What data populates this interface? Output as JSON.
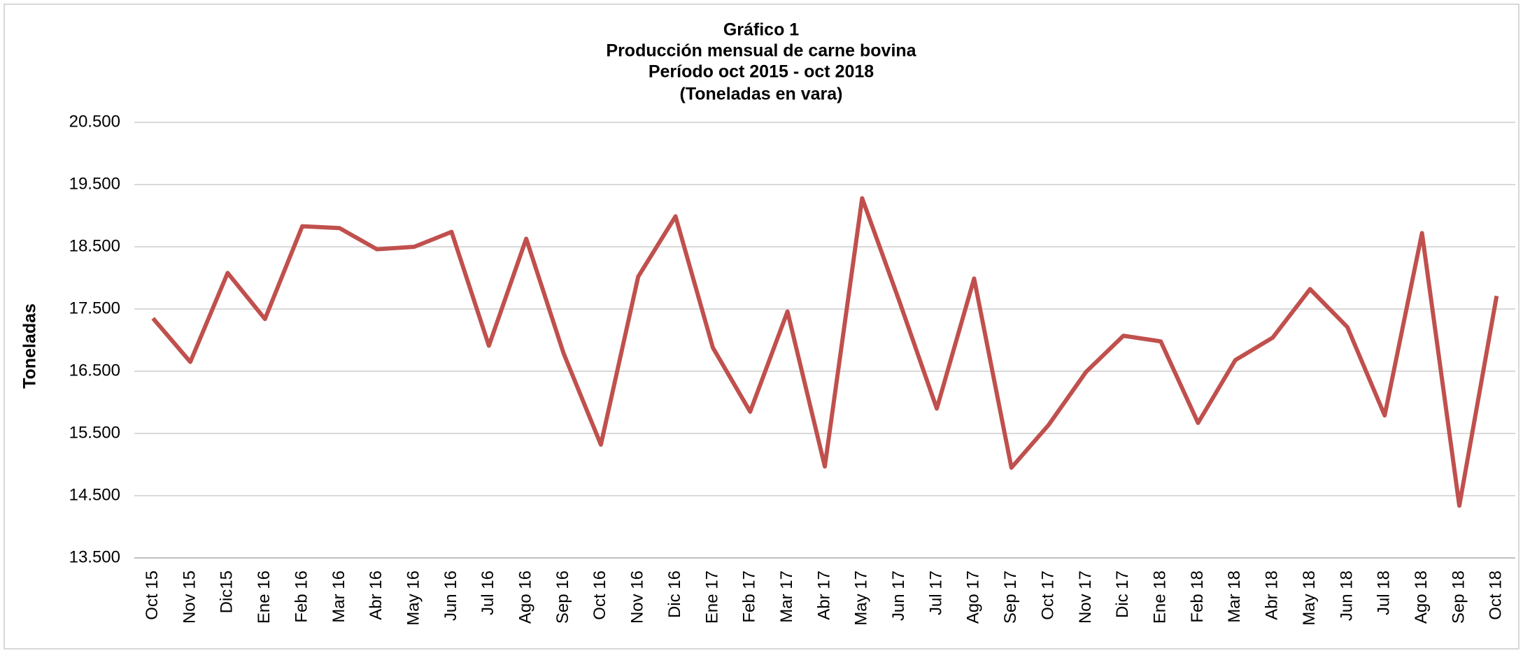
{
  "chart_data": {
    "type": "line",
    "title": [
      "Gráfico 1",
      "Producción mensual de carne bovina",
      "Período oct 2015 -  oct 2018",
      "(Toneladas en vara)"
    ],
    "ylabel": "Toneladas",
    "categories": [
      "Oct 15",
      "Nov 15",
      "Dic15",
      "Ene 16",
      "Feb 16",
      "Mar 16",
      "Abr 16",
      "May 16",
      "Jun 16",
      "Jul 16",
      "Ago 16",
      "Sep 16",
      "Oct 16",
      "Nov 16",
      "Dic 16",
      "Ene 17",
      "Feb 17",
      "Mar 17",
      "Abr 17",
      "May 17",
      "Jun 17",
      "Jul 17",
      "Ago 17",
      "Sep 17",
      "Oct 17",
      "Nov 17",
      "Dic 17",
      "Ene 18",
      "Feb 18",
      "Mar 18",
      "Abr 18",
      "May 18",
      "Jun 18",
      "Jul 18",
      "Ago 18",
      "Sep 18",
      "Oct 18"
    ],
    "series": [
      {
        "name": "Toneladas",
        "color": "#c0504d",
        "values": [
          17350,
          16650,
          18080,
          17340,
          18830,
          18800,
          18460,
          18500,
          18740,
          16910,
          18630,
          16790,
          15320,
          18020,
          18990,
          16880,
          15850,
          17460,
          14970,
          19280,
          17620,
          15900,
          17990,
          14950,
          15640,
          16490,
          17070,
          16980,
          15670,
          16680,
          17040,
          17820,
          17210,
          15790,
          18720,
          14340,
          17710
        ]
      }
    ],
    "ylim": [
      13500,
      20500
    ],
    "yticks": [
      {
        "value": 13500,
        "label": "13.500"
      },
      {
        "value": 14500,
        "label": "14.500"
      },
      {
        "value": 15500,
        "label": "15.500"
      },
      {
        "value": 16500,
        "label": "16.500"
      },
      {
        "value": 17500,
        "label": "17.500"
      },
      {
        "value": 18500,
        "label": "18.500"
      },
      {
        "value": 19500,
        "label": "19.500"
      },
      {
        "value": 20500,
        "label": "20.500"
      }
    ],
    "grid": true
  }
}
